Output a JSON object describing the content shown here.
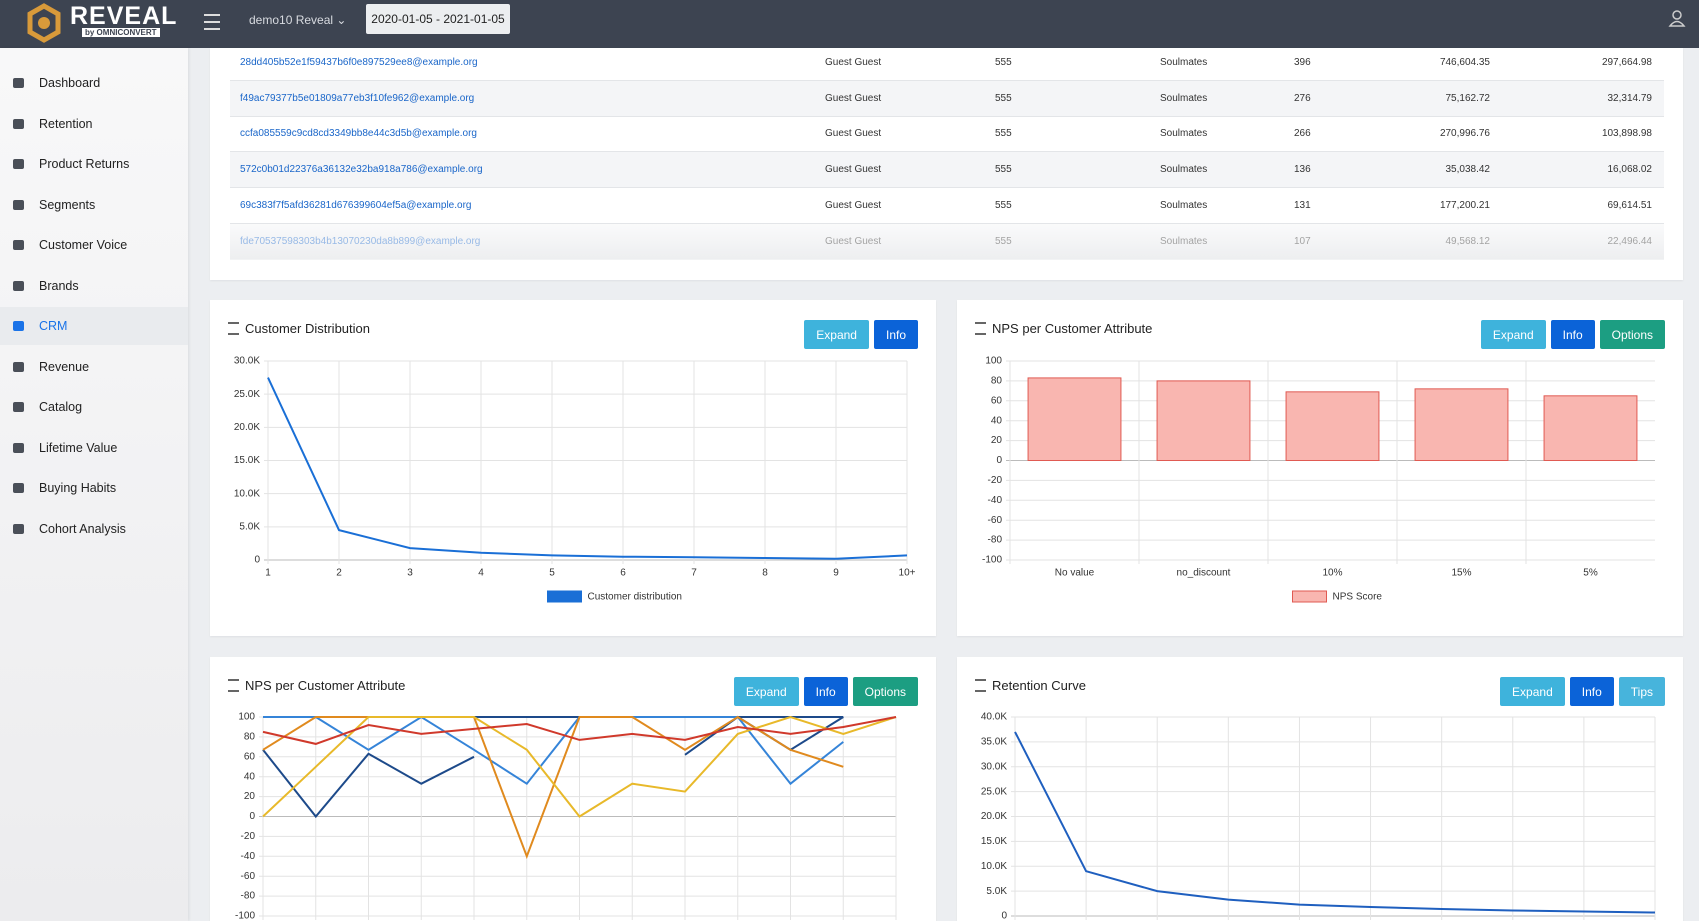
{
  "header": {
    "logo": "REVEAL",
    "logo_sub": "by OMNICONVERT",
    "account": "demo10 Reveal",
    "date_range": "2020-01-05 - 2021-01-05"
  },
  "sidebar": {
    "items": [
      "Dashboard",
      "Retention",
      "Product Returns",
      "Segments",
      "Customer Voice",
      "Brands",
      "CRM",
      "Revenue",
      "Catalog",
      "Lifetime Value",
      "Buying Habits",
      "Cohort Analysis"
    ],
    "active": "CRM"
  },
  "table": {
    "rows": [
      [
        "28dd405b52e1f59437b6f0e897529ee8@example.org",
        "Guest Guest",
        "555",
        "Soulmates",
        "396",
        "746,604.35",
        "297,664.98"
      ],
      [
        "f49ac79377b5e01809a77eb3f10fe962@example.org",
        "Guest Guest",
        "555",
        "Soulmates",
        "276",
        "75,162.72",
        "32,314.79"
      ],
      [
        "ccfa085559c9cd8cd3349bb8e44c3d5b@example.org",
        "Guest Guest",
        "555",
        "Soulmates",
        "266",
        "270,996.76",
        "103,898.98"
      ],
      [
        "572c0b01d22376a36132e32ba918a786@example.org",
        "Guest Guest",
        "555",
        "Soulmates",
        "136",
        "35,038.42",
        "16,068.02"
      ],
      [
        "69c383f7f5afd36281d676399604ef5a@example.org",
        "Guest Guest",
        "555",
        "Soulmates",
        "131",
        "177,200.21",
        "69,614.51"
      ],
      [
        "fde70537598303b4b13070230da8b899@example.org",
        "Guest Guest",
        "555",
        "Soulmates",
        "107",
        "49,568.12",
        "22,496.44"
      ]
    ]
  },
  "chart_data": [
    {
      "type": "line",
      "title": "Customer Distribution",
      "buttons": [
        "Expand",
        "Info"
      ],
      "categories": [
        "1",
        "2",
        "3",
        "4",
        "5",
        "6",
        "7",
        "8",
        "9",
        "10+"
      ],
      "series": [
        {
          "name": "Customer distribution",
          "color": "#1a6fd6",
          "values": [
            27500,
            4500,
            1800,
            1100,
            700,
            500,
            400,
            300,
            200,
            700
          ]
        }
      ],
      "ylim": [
        0,
        30000
      ],
      "yticks": [
        0,
        {
          "value": 5000,
          "label": "5.0K"
        },
        {
          "value": 10000,
          "label": "10.0K"
        },
        {
          "value": 15000,
          "label": "15.0K"
        },
        {
          "value": 20000,
          "label": "20.0K"
        },
        {
          "value": 25000,
          "label": "25.0K"
        },
        {
          "value": 30000,
          "label": "30.0K"
        }
      ],
      "grid": true,
      "legend": "bottom"
    },
    {
      "type": "bar",
      "title": "NPS per Customer Attribute",
      "buttons": [
        "Expand",
        "Info",
        "Options"
      ],
      "categories": [
        "No value",
        "no_discount",
        "10%",
        "15%",
        "5%"
      ],
      "series": [
        {
          "name": "NPS Score",
          "color": "#f9b6b0",
          "border_color": "#e05a52",
          "values": [
            83,
            80,
            69,
            72,
            65
          ]
        }
      ],
      "ylim": [
        -100,
        100
      ],
      "yticks": [
        -100,
        -80,
        -60,
        -40,
        -20,
        0,
        20,
        40,
        60,
        80,
        100
      ],
      "grid": true,
      "legend": "bottom"
    },
    {
      "type": "line",
      "title": "NPS per Customer Attribute",
      "buttons": [
        "Expand",
        "Info",
        "Options"
      ],
      "categories": [
        null,
        null,
        null,
        null,
        null,
        null,
        null,
        null,
        null,
        null,
        null,
        null,
        null
      ],
      "series": [
        {
          "color": "#1d4a8a",
          "values": [
            100,
            100,
            100,
            100,
            100,
            100,
            100,
            100,
            100,
            100,
            100,
            100,
            null
          ]
        },
        {
          "color": "#1d4a8a",
          "values": [
            67,
            0,
            63,
            33,
            60,
            null,
            null,
            null,
            62,
            100,
            67,
            100,
            null
          ]
        },
        {
          "color": "#3584d8",
          "values": [
            100,
            100,
            67,
            100,
            67,
            33,
            100,
            100,
            100,
            100,
            33,
            75,
            null
          ]
        },
        {
          "color": "#e08a1e",
          "values": [
            67,
            100,
            100,
            100,
            100,
            -40,
            100,
            100,
            67,
            100,
            67,
            50,
            null
          ]
        },
        {
          "color": "#e8b92a",
          "values": [
            0,
            50,
            100,
            100,
            100,
            67,
            0,
            33,
            25,
            83,
            100,
            83,
            100
          ]
        },
        {
          "color": "#d0392b",
          "values": [
            85,
            73,
            92,
            83,
            88,
            93,
            77,
            83,
            77,
            90,
            83,
            90,
            100
          ]
        }
      ],
      "ylim": [
        -100,
        100
      ],
      "yticks": [
        -100,
        -80,
        -60,
        -40,
        -20,
        0,
        20,
        40,
        60,
        80,
        100
      ],
      "grid": true
    },
    {
      "type": "line",
      "title": "Retention Curve",
      "buttons": [
        "Expand",
        "Info",
        "Tips"
      ],
      "categories": [
        null,
        null,
        null,
        null,
        null,
        null,
        null,
        null,
        null,
        null
      ],
      "series": [
        {
          "color": "#1f5fbf",
          "values": [
            37000,
            9000,
            5000,
            3300,
            2300,
            1800,
            1400,
            1100,
            900,
            700
          ]
        }
      ],
      "ylim": [
        0,
        40000
      ],
      "yticks": [
        0,
        {
          "value": 5000,
          "label": "5.0K"
        },
        {
          "value": 10000,
          "label": "10.0K"
        },
        {
          "value": 15000,
          "label": "15.0K"
        },
        {
          "value": 20000,
          "label": "20.0K"
        },
        {
          "value": 25000,
          "label": "25.0K"
        },
        {
          "value": 30000,
          "label": "30.0K"
        },
        {
          "value": 35000,
          "label": "35.0K"
        },
        {
          "value": 40000,
          "label": "40.0K"
        }
      ],
      "grid": true
    }
  ]
}
